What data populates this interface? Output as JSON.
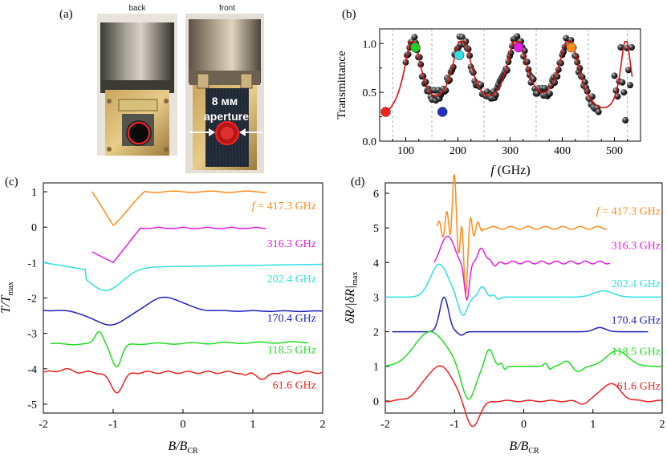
{
  "panel_labels": {
    "a": "(a)",
    "b": "(b)",
    "c": "(c)",
    "d": "(d)"
  },
  "photo": {
    "label_back": "back",
    "label_front": "front",
    "aperture_size": "8 мм",
    "aperture_word": "aperture"
  },
  "chart_data": [
    {
      "id": "b",
      "type": "scatter",
      "title": "",
      "xlabel_italic": "f",
      "xlabel_unit": " (GHz)",
      "ylabel": "Transmittance",
      "xlim": [
        50,
        550
      ],
      "ylim": [
        0,
        1.15
      ],
      "xticks": [
        "100",
        "200",
        "300",
        "400",
        "500"
      ],
      "yticks": [
        "0.0",
        "0.5",
        "1.0"
      ],
      "dashed_vlines": [
        75,
        150,
        250,
        350,
        450,
        525
      ],
      "highlight_points": [
        {
          "x": 61.6,
          "y": 0.3,
          "color": "#ff2020"
        },
        {
          "x": 118.5,
          "y": 0.96,
          "color": "#22cc22"
        },
        {
          "x": 170.4,
          "y": 0.3,
          "color": "#2030c0"
        },
        {
          "x": 202.4,
          "y": 0.88,
          "color": "#30e0e0"
        },
        {
          "x": 316.3,
          "y": 0.96,
          "color": "#e020e0"
        },
        {
          "x": 417.3,
          "y": 0.96,
          "color": "#ff8c1a"
        }
      ],
      "series_color": "#dd1111"
    },
    {
      "id": "c",
      "type": "line",
      "xlabel_main": "B/B",
      "xlabel_sub": "CR",
      "ylabel_main": "T/T",
      "ylabel_sub": "max",
      "xlim": [
        -2,
        2
      ],
      "ylim": [
        -5.25,
        1.25
      ],
      "xticks": [
        "-2",
        "-1",
        "0",
        "1",
        "2"
      ],
      "yticks": [
        "1",
        "0",
        "-1",
        "-2",
        "-3",
        "-4",
        "-5"
      ],
      "freq_prefix": "f",
      "freq_eq": " = ",
      "series": [
        {
          "name": "417.3 GHz",
          "color": "#ff8c1a",
          "offset": 1
        },
        {
          "name": "316.3 GHz",
          "color": "#e020e0",
          "offset": 0
        },
        {
          "name": "202.4 GHz",
          "color": "#30e0e0",
          "offset": -1
        },
        {
          "name": "170.4 GHz",
          "color": "#2020c0",
          "offset": -2
        },
        {
          "name": "118.5 GHz",
          "color": "#22dd22",
          "offset": -3
        },
        {
          "name": "61.6 GHz",
          "color": "#ee2020",
          "offset": -4
        }
      ]
    },
    {
      "id": "d",
      "type": "line",
      "xlabel_main": "B/B",
      "xlabel_sub": "CR",
      "ylabel_main": "δR/|δR|",
      "ylabel_sub": "max",
      "xlim": [
        -2,
        2
      ],
      "ylim": [
        -0.35,
        6.3
      ],
      "xticks": [
        "-2",
        "-1",
        "0",
        "1",
        "2"
      ],
      "yticks": [
        "0",
        "1",
        "2",
        "3",
        "4",
        "5",
        "6"
      ],
      "freq_prefix": "f",
      "freq_eq": " = ",
      "series": [
        {
          "name": "417.3 GHz",
          "color": "#ff8c1a",
          "offset": 5
        },
        {
          "name": "316.3 GHz",
          "color": "#e020e0",
          "offset": 4
        },
        {
          "name": "202.4 GHz",
          "color": "#30e0e0",
          "offset": 3
        },
        {
          "name": "170.4 GHz",
          "color": "#2020c0",
          "offset": 2
        },
        {
          "name": "118.5 GHz",
          "color": "#22dd22",
          "offset": 1
        },
        {
          "name": "61.6 GHz",
          "color": "#ee2020",
          "offset": 0
        }
      ]
    }
  ]
}
